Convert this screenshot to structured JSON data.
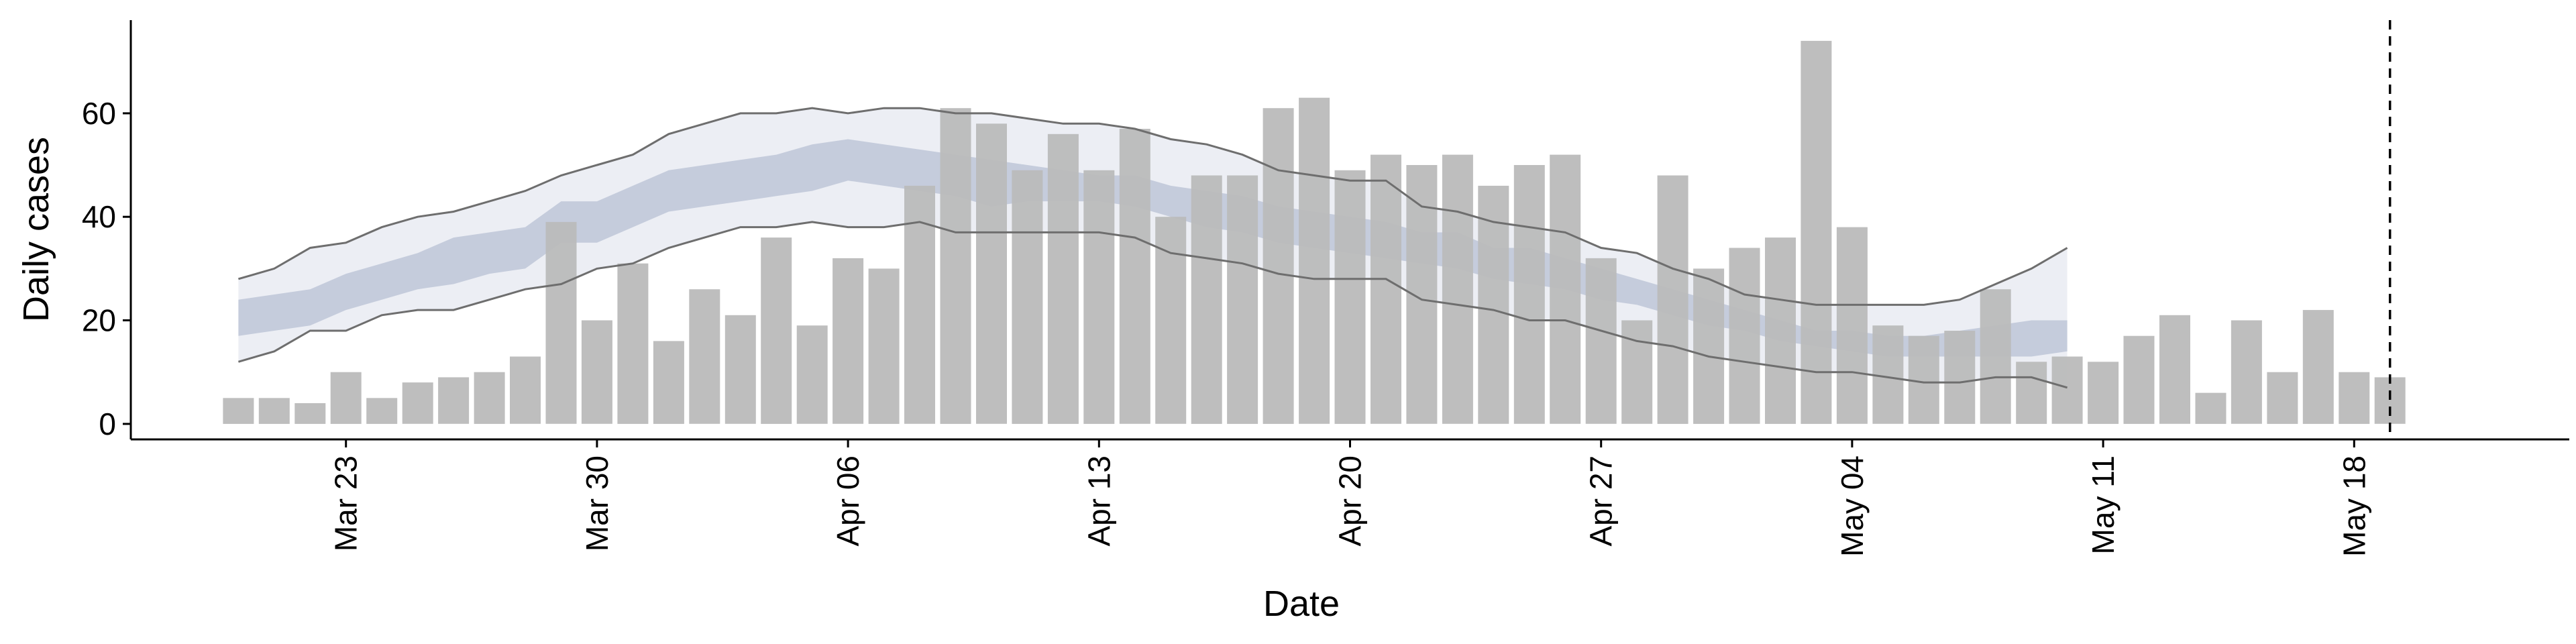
{
  "chart_data": {
    "type": "bar",
    "title": "",
    "xlabel": "Date",
    "ylabel": "Daily cases",
    "x_axis_type": "date",
    "x_range": [
      "2020-03-17",
      "2020-05-24"
    ],
    "ylim": [
      -3,
      78
    ],
    "y_ticks": [
      0,
      20,
      40,
      60
    ],
    "x_ticks": [
      {
        "date": "2020-03-23",
        "label": "Mar 23"
      },
      {
        "date": "2020-03-30",
        "label": "Mar 30"
      },
      {
        "date": "2020-04-06",
        "label": "Apr 06"
      },
      {
        "date": "2020-04-13",
        "label": "Apr 13"
      },
      {
        "date": "2020-04-20",
        "label": "Apr 20"
      },
      {
        "date": "2020-04-27",
        "label": "Apr 27"
      },
      {
        "date": "2020-05-04",
        "label": "May 04"
      },
      {
        "date": "2020-05-11",
        "label": "May 11"
      },
      {
        "date": "2020-05-18",
        "label": "May 18"
      }
    ],
    "grid": false,
    "bars": {
      "start_date": "2020-03-20",
      "values": [
        5,
        5,
        4,
        10,
        5,
        8,
        9,
        10,
        13,
        39,
        20,
        31,
        16,
        26,
        21,
        36,
        19,
        32,
        30,
        46,
        61,
        58,
        49,
        56,
        49,
        57,
        40,
        48,
        48,
        61,
        63,
        49,
        52,
        50,
        52,
        46,
        50,
        52,
        32,
        20,
        48,
        30,
        34,
        36,
        74,
        38,
        19,
        17,
        18,
        26,
        12,
        13,
        12,
        17,
        21,
        6,
        20,
        10,
        22,
        10,
        9
      ],
      "color": "#bababa"
    },
    "forecast": {
      "start_date": "2020-03-20",
      "outer_upper": [
        28,
        30,
        34,
        35,
        38,
        40,
        41,
        43,
        45,
        48,
        50,
        52,
        56,
        58,
        60,
        60,
        61,
        60,
        61,
        61,
        60,
        60,
        59,
        58,
        58,
        57,
        55,
        54,
        52,
        49,
        48,
        47,
        47,
        42,
        41,
        39,
        38,
        37,
        34,
        33,
        30,
        28,
        25,
        24,
        23,
        23,
        23,
        23,
        24,
        27,
        30,
        34
      ],
      "outer_lower": [
        12,
        14,
        18,
        18,
        21,
        22,
        22,
        24,
        26,
        27,
        30,
        31,
        34,
        36,
        38,
        38,
        39,
        38,
        38,
        39,
        37,
        37,
        37,
        37,
        37,
        36,
        33,
        32,
        31,
        29,
        28,
        28,
        28,
        24,
        23,
        22,
        20,
        20,
        18,
        16,
        15,
        13,
        12,
        11,
        10,
        10,
        9,
        8,
        8,
        9,
        9,
        7
      ],
      "inner_upper": [
        24,
        25,
        26,
        29,
        31,
        33,
        36,
        37,
        38,
        43,
        43,
        46,
        49,
        50,
        51,
        52,
        54,
        55,
        54,
        53,
        52,
        51,
        50,
        49,
        48,
        48,
        46,
        45,
        44,
        42,
        41,
        40,
        39,
        37,
        37,
        34,
        34,
        32,
        30,
        28,
        26,
        24,
        22,
        20,
        18,
        18,
        17,
        17,
        18,
        19,
        20,
        20
      ],
      "inner_lower": [
        17,
        18,
        19,
        22,
        24,
        26,
        27,
        29,
        30,
        35,
        35,
        38,
        41,
        42,
        43,
        44,
        45,
        47,
        46,
        45,
        44,
        42,
        43,
        43,
        43,
        42,
        40,
        38,
        37,
        35,
        34,
        33,
        32,
        31,
        30,
        28,
        27,
        26,
        24,
        23,
        21,
        19,
        18,
        16,
        15,
        14,
        13,
        13,
        13,
        13,
        13,
        14
      ],
      "outer_color": "#eceef4",
      "inner_color": "#c5ccdc",
      "line_color": "#6e6e6e"
    },
    "vline_date": "2020-05-19"
  }
}
